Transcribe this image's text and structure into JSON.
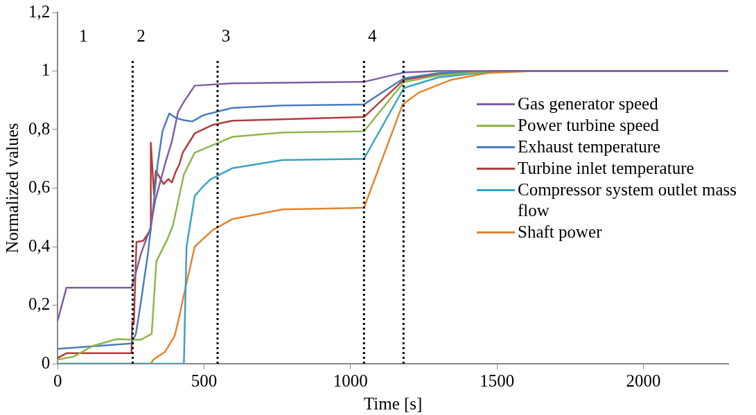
{
  "chart_data": {
    "type": "line",
    "xlabel": "Time [s]",
    "ylabel": "Normalized values",
    "xlim": [
      0,
      2290
    ],
    "xticks": [
      0,
      500,
      1000,
      1500,
      2000
    ],
    "ylim": [
      0,
      1.2
    ],
    "yticks": [
      0,
      {
        "value": 0.2,
        "label": "0,2"
      },
      {
        "value": 0.4,
        "label": "0,4"
      },
      {
        "value": 0.6,
        "label": "0,6"
      },
      {
        "value": 0.8,
        "label": "0,8"
      },
      1,
      {
        "value": 1.2,
        "label": "1,2"
      }
    ],
    "grid": false,
    "legend": "right",
    "marker": "none",
    "line_style": "solid",
    "series": [
      {
        "name": "Gas generator speed",
        "color": "#7e5ea3",
        "x": [
          0,
          30,
          252,
          267,
          284,
          317,
          333,
          366,
          390,
          411,
          431,
          468,
          596,
          1046,
          1182,
          1300,
          2290
        ],
        "values": [
          0.148,
          0.26,
          0.26,
          0.31,
          0.375,
          0.465,
          0.557,
          0.68,
          0.76,
          0.86,
          0.895,
          0.95,
          0.958,
          0.963,
          0.995,
          1,
          1
        ]
      },
      {
        "name": "Power turbine speed",
        "color": "#8db64d",
        "x": [
          0,
          54,
          120,
          202,
          252,
          284,
          321,
          337,
          374,
          394,
          431,
          468,
          596,
          768,
          1046,
          1182,
          1300,
          1500,
          2290
        ],
        "values": [
          0.014,
          0.024,
          0.061,
          0.084,
          0.082,
          0.082,
          0.102,
          0.35,
          0.424,
          0.474,
          0.647,
          0.721,
          0.775,
          0.79,
          0.794,
          0.962,
          0.985,
          1,
          1
        ]
      },
      {
        "name": "Exhaust temperature",
        "color": "#4a7ebb",
        "x": [
          0,
          252,
          267,
          284,
          308,
          325,
          341,
          358,
          381,
          403,
          431,
          460,
          497,
          596,
          768,
          1046,
          1182,
          1300,
          1500,
          2290
        ],
        "values": [
          0.051,
          0.069,
          0.102,
          0.21,
          0.375,
          0.523,
          0.68,
          0.795,
          0.855,
          0.84,
          0.832,
          0.828,
          0.849,
          0.874,
          0.882,
          0.886,
          0.975,
          0.993,
          1,
          1
        ]
      },
      {
        "name": "Turbine inlet temperature",
        "color": "#b03d3a",
        "x": [
          0,
          30,
          252,
          255,
          260,
          269,
          292,
          317,
          318,
          329,
          335,
          362,
          378,
          390,
          403,
          415,
          427,
          440,
          468,
          530,
          596,
          1046,
          1182,
          1300,
          1500,
          2290
        ],
        "values": [
          0.02,
          0.036,
          0.036,
          0.144,
          0.136,
          0.416,
          0.42,
          0.457,
          0.755,
          0.577,
          0.659,
          0.614,
          0.631,
          0.619,
          0.656,
          0.68,
          0.721,
          0.742,
          0.787,
          0.816,
          0.83,
          0.843,
          0.97,
          0.99,
          1,
          1
        ]
      },
      {
        "name": "Compressor system outlet mass flow",
        "color": "#3aa3bf",
        "x": [
          0,
          431,
          440,
          468,
          497,
          522,
          596,
          768,
          1046,
          1182,
          1300,
          1500,
          2290
        ],
        "values": [
          0,
          0,
          0.4,
          0.573,
          0.606,
          0.63,
          0.668,
          0.696,
          0.7,
          0.942,
          0.978,
          1,
          1
        ]
      },
      {
        "name": "Shaft power",
        "color": "#e6832e",
        "x": [
          0,
          317,
          329,
          366,
          399,
          415,
          427,
          468,
          530,
          596,
          768,
          1046,
          1178,
          1235,
          1341,
          1464,
          1629,
          2290
        ],
        "values": [
          0,
          0,
          0.016,
          0.04,
          0.094,
          0.16,
          0.218,
          0.4,
          0.457,
          0.494,
          0.527,
          0.533,
          0.886,
          0.927,
          0.969,
          0.993,
          1,
          1
        ]
      }
    ],
    "ref_lines": [
      {
        "axis": "x",
        "value": 256,
        "color": "#000000",
        "line_style": "dotted"
      },
      {
        "axis": "x",
        "value": 546,
        "color": "#000000",
        "line_style": "dotted"
      },
      {
        "axis": "x",
        "value": 1046,
        "color": "#000000",
        "line_style": "dotted"
      },
      {
        "axis": "x",
        "value": 1181,
        "color": "#000000",
        "line_style": "dotted"
      }
    ],
    "annotations": [
      "1",
      "2",
      "3",
      "4"
    ]
  }
}
